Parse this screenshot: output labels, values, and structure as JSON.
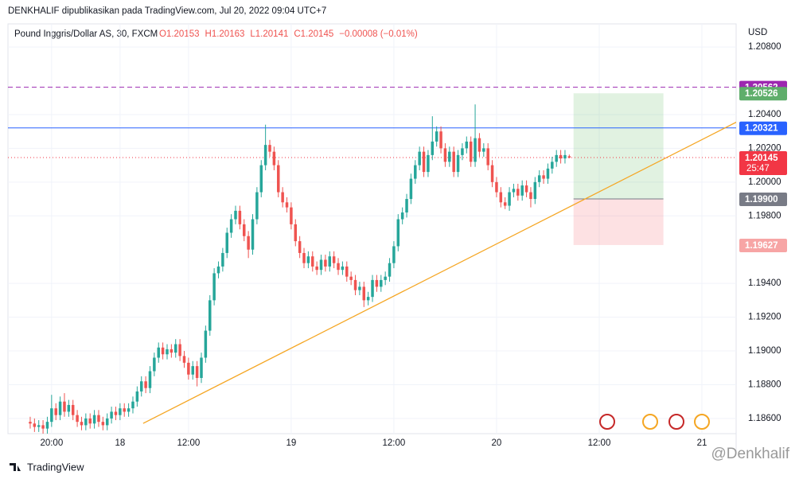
{
  "header": "DENKHALIF dipublikasikan pada TradingView.com, Jul 20, 2022 09:04 UTC+7",
  "footer": "TradingView",
  "watermark": "@Denkhalif",
  "chart_data": {
    "type": "candlestick",
    "title": "Pound Inggris/Dollar AS, 30, FXCM",
    "legend_values": [
      "O1.20153",
      "H1.20163",
      "L1.20141",
      "C1.20145",
      "−0.00008 (−0.01%)"
    ],
    "currency": "USD",
    "up_color": "#26a69a",
    "down_color": "#ef5350",
    "ohlc": [
      [
        1.1858,
        1.1861,
        1.1854,
        1.1857
      ],
      [
        1.1857,
        1.186,
        1.1852,
        1.1855
      ],
      [
        1.1855,
        1.1859,
        1.1852,
        1.1856
      ],
      [
        1.1856,
        1.1859,
        1.1851,
        1.1854
      ],
      [
        1.1854,
        1.1861,
        1.1851,
        1.1858
      ],
      [
        1.1858,
        1.1874,
        1.1855,
        1.1866
      ],
      [
        1.1866,
        1.1869,
        1.1859,
        1.1862
      ],
      [
        1.1862,
        1.1873,
        1.1859,
        1.187
      ],
      [
        1.187,
        1.1875,
        1.1861,
        1.1864
      ],
      [
        1.1864,
        1.1871,
        1.1861,
        1.1868
      ],
      [
        1.1868,
        1.1871,
        1.1859,
        1.1862
      ],
      [
        1.1862,
        1.1865,
        1.1855,
        1.1858
      ],
      [
        1.1858,
        1.1861,
        1.1853,
        1.1856
      ],
      [
        1.1856,
        1.1863,
        1.1853,
        1.186
      ],
      [
        1.186,
        1.1863,
        1.1854,
        1.1857
      ],
      [
        1.1857,
        1.1865,
        1.1854,
        1.1862
      ],
      [
        1.1862,
        1.1865,
        1.1855,
        1.1858
      ],
      [
        1.1858,
        1.1861,
        1.1853,
        1.1856
      ],
      [
        1.1856,
        1.1863,
        1.1853,
        1.186
      ],
      [
        1.186,
        1.1867,
        1.1857,
        1.1864
      ],
      [
        1.1864,
        1.1867,
        1.1859,
        1.1862
      ],
      [
        1.1862,
        1.1869,
        1.1859,
        1.1866
      ],
      [
        1.1866,
        1.1869,
        1.1861,
        1.1864
      ],
      [
        1.1864,
        1.1869,
        1.1861,
        1.1866
      ],
      [
        1.1866,
        1.1873,
        1.1863,
        1.187
      ],
      [
        1.187,
        1.1879,
        1.1867,
        1.1876
      ],
      [
        1.1876,
        1.1885,
        1.1873,
        1.1882
      ],
      [
        1.1882,
        1.1885,
        1.1875,
        1.1878
      ],
      [
        1.1878,
        1.1891,
        1.1875,
        1.1888
      ],
      [
        1.1888,
        1.1899,
        1.1885,
        1.1896
      ],
      [
        1.1896,
        1.1905,
        1.1893,
        1.1902
      ],
      [
        1.1902,
        1.1905,
        1.1895,
        1.1898
      ],
      [
        1.1898,
        1.1904,
        1.1895,
        1.1901
      ],
      [
        1.1901,
        1.1904,
        1.1896,
        1.1899
      ],
      [
        1.1899,
        1.1907,
        1.1896,
        1.1904
      ],
      [
        1.1904,
        1.1907,
        1.1894,
        1.1897
      ],
      [
        1.1897,
        1.19,
        1.189,
        1.1893
      ],
      [
        1.1893,
        1.1896,
        1.1883,
        1.1886
      ],
      [
        1.1886,
        1.1894,
        1.1883,
        1.1891
      ],
      [
        1.1891,
        1.1894,
        1.1879,
        1.1884
      ],
      [
        1.1884,
        1.1899,
        1.1881,
        1.1896
      ],
      [
        1.1896,
        1.1915,
        1.1893,
        1.1912
      ],
      [
        1.1912,
        1.1933,
        1.1909,
        1.193
      ],
      [
        1.193,
        1.1949,
        1.1927,
        1.1946
      ],
      [
        1.1946,
        1.1953,
        1.1943,
        1.195
      ],
      [
        1.195,
        1.1961,
        1.1947,
        1.1958
      ],
      [
        1.1958,
        1.1973,
        1.1955,
        1.197
      ],
      [
        1.197,
        1.1981,
        1.1967,
        1.1978
      ],
      [
        1.1978,
        1.1986,
        1.1975,
        1.1983
      ],
      [
        1.1983,
        1.1986,
        1.1972,
        1.1975
      ],
      [
        1.1975,
        1.1978,
        1.1965,
        1.1968
      ],
      [
        1.1968,
        1.1971,
        1.1955,
        1.196
      ],
      [
        1.196,
        1.1981,
        1.1957,
        1.1978
      ],
      [
        1.1978,
        1.1997,
        1.1975,
        1.1994
      ],
      [
        1.1994,
        1.2013,
        1.1991,
        1.201
      ],
      [
        1.201,
        1.2034,
        1.2007,
        1.2022
      ],
      [
        1.2022,
        1.2025,
        1.2015,
        1.2018
      ],
      [
        1.2018,
        1.2021,
        1.2007,
        1.201
      ],
      [
        1.201,
        1.2013,
        1.1991,
        1.1994
      ],
      [
        1.1994,
        1.1997,
        1.1985,
        1.1988
      ],
      [
        1.1988,
        1.1991,
        1.1982,
        1.1985
      ],
      [
        1.1985,
        1.1988,
        1.1972,
        1.1975
      ],
      [
        1.1975,
        1.1978,
        1.1962,
        1.1965
      ],
      [
        1.1965,
        1.1968,
        1.1955,
        1.1958
      ],
      [
        1.1958,
        1.1961,
        1.1949,
        1.1952
      ],
      [
        1.1952,
        1.1959,
        1.1949,
        1.1956
      ],
      [
        1.1956,
        1.1959,
        1.1947,
        1.195
      ],
      [
        1.195,
        1.1953,
        1.1945,
        1.1948
      ],
      [
        1.1948,
        1.1957,
        1.1945,
        1.1954
      ],
      [
        1.1954,
        1.1957,
        1.1947,
        1.195
      ],
      [
        1.195,
        1.1959,
        1.1947,
        1.1956
      ],
      [
        1.1956,
        1.1959,
        1.1949,
        1.1952
      ],
      [
        1.1952,
        1.1955,
        1.1945,
        1.1948
      ],
      [
        1.1948,
        1.1953,
        1.1945,
        1.195
      ],
      [
        1.195,
        1.1953,
        1.1941,
        1.1944
      ],
      [
        1.1944,
        1.1947,
        1.1939,
        1.1942
      ],
      [
        1.1942,
        1.1945,
        1.1933,
        1.1936
      ],
      [
        1.1936,
        1.1941,
        1.1933,
        1.1938
      ],
      [
        1.1938,
        1.1941,
        1.1926,
        1.193
      ],
      [
        1.193,
        1.1935,
        1.1927,
        1.1932
      ],
      [
        1.1932,
        1.1945,
        1.1929,
        1.1942
      ],
      [
        1.1942,
        1.1945,
        1.1935,
        1.1938
      ],
      [
        1.1938,
        1.1945,
        1.1935,
        1.1942
      ],
      [
        1.1942,
        1.1947,
        1.1939,
        1.1944
      ],
      [
        1.1944,
        1.1955,
        1.1941,
        1.1952
      ],
      [
        1.1952,
        1.1965,
        1.1949,
        1.1962
      ],
      [
        1.1962,
        1.1981,
        1.1959,
        1.1978
      ],
      [
        1.1978,
        1.1985,
        1.1975,
        1.1982
      ],
      [
        1.1982,
        1.1993,
        1.1979,
        1.199
      ],
      [
        1.199,
        1.2005,
        1.1987,
        1.2002
      ],
      [
        1.2002,
        1.2013,
        1.1999,
        1.201
      ],
      [
        1.201,
        1.2021,
        1.2007,
        1.2018
      ],
      [
        1.2018,
        1.2021,
        1.2003,
        1.2006
      ],
      [
        1.2006,
        1.2019,
        1.2003,
        1.2016
      ],
      [
        1.2016,
        1.2039,
        1.2013,
        1.2024
      ],
      [
        1.2024,
        1.2033,
        1.2021,
        1.203
      ],
      [
        1.203,
        1.2033,
        1.2017,
        1.202
      ],
      [
        1.202,
        1.2023,
        1.2009,
        1.2012
      ],
      [
        1.2012,
        1.2021,
        1.2009,
        1.2018
      ],
      [
        1.2018,
        1.2021,
        1.2003,
        1.2006
      ],
      [
        1.2006,
        1.2019,
        1.2003,
        1.2016
      ],
      [
        1.2016,
        1.2023,
        1.2013,
        1.202
      ],
      [
        1.202,
        1.2027,
        1.2017,
        1.2024
      ],
      [
        1.2024,
        1.2027,
        1.2009,
        1.2012
      ],
      [
        1.2012,
        1.2046,
        1.2009,
        1.2026
      ],
      [
        1.2026,
        1.2029,
        1.2015,
        1.2018
      ],
      [
        1.2018,
        1.2023,
        1.2015,
        1.202
      ],
      [
        1.202,
        1.2023,
        1.2007,
        1.201
      ],
      [
        1.201,
        1.2013,
        1.1997,
        1.2
      ],
      [
        1.2,
        1.2003,
        1.1991,
        1.1994
      ],
      [
        1.1994,
        1.1997,
        1.1985,
        1.1988
      ],
      [
        1.1988,
        1.1991,
        1.1984,
        1.1986
      ],
      [
        1.1986,
        1.1997,
        1.1983,
        1.1994
      ],
      [
        1.1994,
        1.1999,
        1.1991,
        1.1996
      ],
      [
        1.1996,
        1.1999,
        1.1989,
        1.1992
      ],
      [
        1.1992,
        1.2001,
        1.1989,
        1.1998
      ],
      [
        1.1998,
        1.2001,
        1.1991,
        1.1994
      ],
      [
        1.1994,
        1.1997,
        1.1985,
        1.199
      ],
      [
        1.199,
        1.2003,
        1.1987,
        1.2
      ],
      [
        1.2,
        1.2007,
        1.1997,
        1.2004
      ],
      [
        1.2004,
        1.2007,
        1.1999,
        1.2002
      ],
      [
        1.2002,
        1.2011,
        1.1999,
        1.2008
      ],
      [
        1.2008,
        1.2015,
        1.2005,
        1.2012
      ],
      [
        1.2012,
        1.2019,
        1.2009,
        1.2016
      ],
      [
        1.2016,
        1.2019,
        1.2011,
        1.2014
      ],
      [
        1.2014,
        1.2019,
        1.2011,
        1.2016
      ],
      [
        1.20153,
        1.20163,
        1.20141,
        1.20145
      ]
    ],
    "xlim": [
      -5.2,
      165
    ],
    "xticks": [
      {
        "value": 5,
        "label": "20:00"
      },
      {
        "value": 21,
        "label": "18"
      },
      {
        "value": 37,
        "label": "12:00"
      },
      {
        "value": 61,
        "label": "19"
      },
      {
        "value": 85,
        "label": "12:00"
      },
      {
        "value": 109,
        "label": "20"
      },
      {
        "value": 133,
        "label": "12:00"
      },
      {
        "value": 157,
        "label": "21"
      }
    ],
    "ylim": [
      1.1851,
      1.20937
    ],
    "yticks": [
      {
        "value": 1.208,
        "label": "1.20800"
      },
      {
        "value": 1.204,
        "label": "1.20400"
      },
      {
        "value": 1.202,
        "label": "1.20200"
      },
      {
        "value": 1.2,
        "label": "1.20000"
      },
      {
        "value": 1.198,
        "label": "1.19800"
      },
      {
        "value": 1.194,
        "label": "1.19400"
      },
      {
        "value": 1.192,
        "label": "1.19200"
      },
      {
        "value": 1.19,
        "label": "1.19000"
      },
      {
        "value": 1.188,
        "label": "1.18800"
      },
      {
        "value": 1.186,
        "label": "1.18600"
      }
    ],
    "grid": true,
    "lines": [
      {
        "price": 1.20562,
        "label": "1.20562",
        "color": "#9c27b0",
        "style": "dashed"
      },
      {
        "price": 1.20321,
        "label": "1.20321",
        "color": "#2962ff",
        "style": "solid"
      }
    ],
    "last_price": {
      "price": 1.20145,
      "label": "1.20145",
      "countdown": "25:47",
      "color": "#f23645"
    },
    "position": {
      "start": 127,
      "end": 148,
      "target": 1.20526,
      "target_label": "1.20526",
      "entry": 1.199,
      "entry_label": "1.19900",
      "stop": 1.19627,
      "stop_label": "1.19627"
    },
    "trendline": {
      "x": [
        26.4,
        165.6
      ],
      "y": [
        1.18571,
        1.20362
      ],
      "color": "#f5a623"
    }
  }
}
